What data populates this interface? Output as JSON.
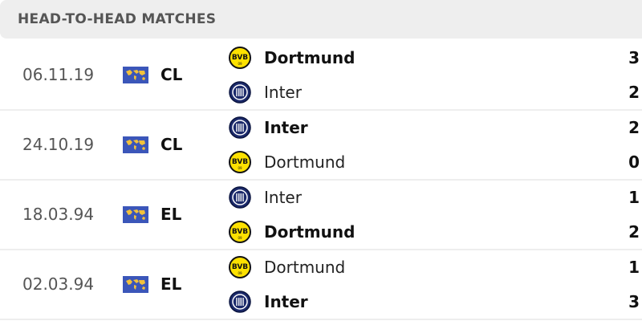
{
  "header": {
    "title": "HEAD-TO-HEAD MATCHES"
  },
  "colors": {
    "bvb": "#fde100",
    "inter": "#1c2a6b",
    "flag": "#3b56b9"
  },
  "matches": [
    {
      "date": "06.11.19",
      "competition": "CL",
      "home": {
        "name": "Dortmund",
        "logo": "bvb-logo",
        "score": "3",
        "bold": true
      },
      "away": {
        "name": "Inter",
        "logo": "inter-logo",
        "score": "2",
        "bold": false
      }
    },
    {
      "date": "24.10.19",
      "competition": "CL",
      "home": {
        "name": "Inter",
        "logo": "inter-logo",
        "score": "2",
        "bold": true
      },
      "away": {
        "name": "Dortmund",
        "logo": "bvb-logo",
        "score": "0",
        "bold": false
      }
    },
    {
      "date": "18.03.94",
      "competition": "EL",
      "home": {
        "name": "Inter",
        "logo": "inter-logo",
        "score": "1",
        "bold": false
      },
      "away": {
        "name": "Dortmund",
        "logo": "bvb-logo",
        "score": "2",
        "bold": true
      }
    },
    {
      "date": "02.03.94",
      "competition": "EL",
      "home": {
        "name": "Dortmund",
        "logo": "bvb-logo",
        "score": "1",
        "bold": false
      },
      "away": {
        "name": "Inter",
        "logo": "inter-logo",
        "score": "3",
        "bold": true
      }
    }
  ]
}
